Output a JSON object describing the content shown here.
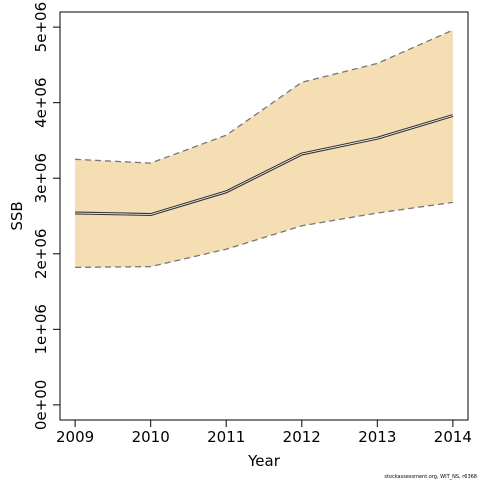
{
  "chart_data": {
    "type": "area",
    "xlabel": "Year",
    "ylabel": "SSB",
    "x": [
      2009,
      2010,
      2011,
      2012,
      2013,
      2014
    ],
    "x_ticks": [
      "2009",
      "2010",
      "2011",
      "2012",
      "2013",
      "2014"
    ],
    "y_ticks": [
      0,
      1000000,
      2000000,
      3000000,
      4000000,
      5000000
    ],
    "y_tick_labels": [
      "0e+00",
      "1e+06",
      "2e+06",
      "3e+06",
      "4e+06",
      "5e+06"
    ],
    "xlim": [
      2008.8,
      2014.2
    ],
    "ylim": [
      -200000,
      5200000
    ],
    "series": [
      {
        "role": "estimate",
        "values": [
          2540000,
          2520000,
          2820000,
          3320000,
          3530000,
          3830000
        ]
      },
      {
        "role": "upper_bound",
        "values": [
          3250000,
          3200000,
          3570000,
          4270000,
          4520000,
          4960000
        ]
      },
      {
        "role": "lower_bound",
        "values": [
          1820000,
          1830000,
          2060000,
          2370000,
          2540000,
          2680000
        ]
      }
    ],
    "band_color": "#f5deb3",
    "line_color": "#333333",
    "bound_color": "#777777",
    "grid": false,
    "credit": "stockassessment.org, WIT_NS, r6368"
  }
}
